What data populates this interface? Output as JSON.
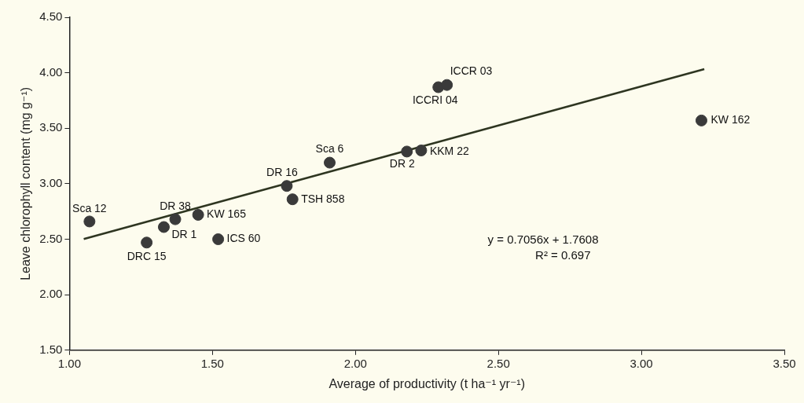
{
  "chart_data": {
    "type": "scatter",
    "x_label": "Average of productivity (t ha⁻¹ yr⁻¹)",
    "y_label": "Leave chlorophyll content (mg g⁻¹)",
    "labels": [
      "Sca 12",
      "DRC 15",
      "DR 1",
      "DR 38",
      "KW 165",
      "ICS 60",
      "DR 16",
      "TSH 858",
      "Sca 6",
      "DR 2",
      "KKM 22",
      "ICCRI 04",
      "ICCR 03",
      "KW 162"
    ],
    "x": [
      1.07,
      1.27,
      1.33,
      1.37,
      1.45,
      1.52,
      1.76,
      1.78,
      1.91,
      2.18,
      2.23,
      2.29,
      2.32,
      3.21
    ],
    "values": [
      2.66,
      2.47,
      2.61,
      2.68,
      2.72,
      2.5,
      2.98,
      2.86,
      3.19,
      3.29,
      3.3,
      3.87,
      3.89,
      3.57
    ],
    "color": "#3a3a3a",
    "marker": "circle",
    "trendline": {
      "slope": 0.7056,
      "intercept": 1.7608,
      "xlim": [
        1.05,
        3.22
      ],
      "color": "#2e3520"
    },
    "annotations": [
      "y = 0.7056x + 1.7608",
      "R² = 0.697"
    ],
    "xlim": [
      1.0,
      3.5
    ],
    "xticks": [
      {
        "value": 1.0,
        "label": "1.00"
      },
      {
        "value": 1.5,
        "label": "1.50"
      },
      {
        "value": 2.0,
        "label": "2.00"
      },
      {
        "value": 2.5,
        "label": "2.50"
      },
      {
        "value": 3.0,
        "label": "3.00"
      },
      {
        "value": 3.5,
        "label": "3.50"
      }
    ],
    "ylim": [
      1.5,
      4.5
    ],
    "yticks": [
      {
        "value": 1.5,
        "label": "1.50"
      },
      {
        "value": 2.0,
        "label": "2.00"
      },
      {
        "value": 2.5,
        "label": "2.50"
      },
      {
        "value": 3.0,
        "label": "3.00"
      },
      {
        "value": 3.5,
        "label": "3.50"
      },
      {
        "value": 4.0,
        "label": "4.00"
      },
      {
        "value": 4.5,
        "label": "4.50"
      }
    ],
    "grid": false
  }
}
